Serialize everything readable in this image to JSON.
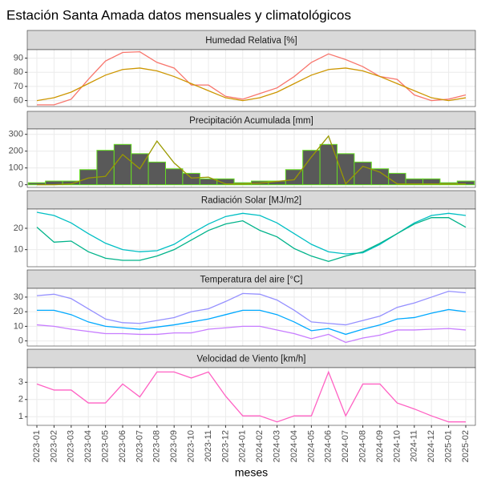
{
  "title": "Estación Santa Amada datos mensuales y climatológicos",
  "chart_data": [
    {
      "type": "line",
      "title": "Humedad Relativa [%]",
      "ylim": [
        55.8,
        96
      ],
      "yticks": [
        60,
        70,
        80,
        90
      ],
      "series": [
        {
          "color": "#F8766D",
          "values": [
            57,
            57,
            61,
            75,
            88,
            94,
            94.5,
            87,
            83,
            71,
            71,
            63,
            61,
            65,
            69,
            77,
            87,
            93,
            89,
            84,
            77,
            75,
            64,
            60,
            61,
            64
          ]
        },
        {
          "color": "#CD9600",
          "values": [
            60,
            62,
            66,
            72,
            78,
            82,
            83,
            81,
            77,
            72,
            67,
            62,
            60,
            62,
            66,
            72,
            78,
            82,
            83,
            81,
            77,
            72,
            67,
            62,
            60,
            62
          ]
        }
      ]
    },
    {
      "type": "bar",
      "title": "Precipitación Acumulada [mm]",
      "ylim": [
        -16,
        332
      ],
      "yticks": [
        0,
        100,
        200,
        300
      ],
      "series": [
        {
          "type": "bar",
          "color": "#595959",
          "edgecolor": "#66DD22",
          "values": [
            12,
            22,
            22,
            90,
            205,
            240,
            185,
            135,
            95,
            68,
            35,
            35,
            12,
            22,
            22,
            90,
            205,
            240,
            185,
            135,
            95,
            68,
            35,
            35,
            12,
            22
          ]
        },
        {
          "type": "line",
          "color": "#9A9A00",
          "values": [
            0,
            0,
            5,
            40,
            50,
            180,
            95,
            260,
            130,
            40,
            45,
            5,
            5,
            10,
            20,
            30,
            165,
            290,
            5,
            110,
            75,
            5,
            5,
            5,
            5,
            5
          ]
        }
      ]
    },
    {
      "type": "line",
      "title": "Radiación Solar [MJ/m2]",
      "ylim": [
        2,
        29
      ],
      "yticks": [
        10,
        20
      ],
      "series": [
        {
          "color": "#00BFC4",
          "values": [
            27.5,
            26,
            22.5,
            17.5,
            13,
            10,
            9,
            9.5,
            12.5,
            17.5,
            22,
            25.5,
            27,
            26,
            22.5,
            17.5,
            12.5,
            9,
            8,
            8.5,
            12.5,
            17.5,
            22.5,
            26,
            27,
            26
          ]
        },
        {
          "color": "#00B38A",
          "values": [
            20.5,
            13.5,
            14,
            9,
            6,
            5,
            5,
            7,
            10,
            14.5,
            19,
            22,
            23.5,
            19,
            16,
            10.5,
            7,
            4.5,
            7,
            9,
            13,
            17.5,
            22,
            25,
            25,
            20.5
          ]
        }
      ]
    },
    {
      "type": "line",
      "title": "Temperatura del aire [°C]",
      "ylim": [
        -3.5,
        36
      ],
      "yticks": [
        0,
        10,
        20,
        30
      ],
      "series": [
        {
          "color": "#9590FF",
          "values": [
            31,
            32,
            29,
            22,
            15,
            12.5,
            12,
            14,
            16,
            20,
            22,
            27,
            32.5,
            32,
            28,
            21,
            13,
            12,
            11,
            14,
            17,
            23,
            26,
            30,
            34,
            33
          ]
        },
        {
          "color": "#00A9FF",
          "values": [
            21,
            21,
            18,
            13,
            10,
            9,
            8,
            9.5,
            11,
            13,
            15,
            18,
            21,
            21,
            18,
            13,
            7,
            8.5,
            4.5,
            8,
            11,
            15,
            16,
            19,
            21.5,
            20
          ]
        },
        {
          "color": "#C77CFF",
          "values": [
            11,
            10,
            8,
            6.5,
            5,
            5,
            4.5,
            4.5,
            5.5,
            5.5,
            8,
            9,
            10,
            10,
            7.5,
            5,
            1.5,
            4.5,
            -1,
            2,
            4,
            7.5,
            7.5,
            8,
            8.5,
            7.5
          ]
        }
      ]
    },
    {
      "type": "line",
      "title": "Velocidad de Viento [km/h]",
      "ylim": [
        0.5,
        3.85
      ],
      "yticks": [
        1,
        2,
        3
      ],
      "xlabel": "meses",
      "categories": [
        "2023-01",
        "2023-02",
        "2023-03",
        "2023-04",
        "2023-05",
        "2023-06",
        "2023-07",
        "2023-08",
        "2023-09",
        "2023-10",
        "2023-11",
        "2023-12",
        "2024-01",
        "2024-02",
        "2024-03",
        "2024-04",
        "2024-05",
        "2024-06",
        "2024-07",
        "2024-08",
        "2024-09",
        "2024-10",
        "2024-11",
        "2024-12",
        "2025-01",
        "2025-02"
      ],
      "series": [
        {
          "color": "#FF61C3",
          "values": [
            2.9,
            2.55,
            2.55,
            1.8,
            1.8,
            2.9,
            2.15,
            3.6,
            3.6,
            3.25,
            3.6,
            2.2,
            1.05,
            1.05,
            0.7,
            1.05,
            1.05,
            3.6,
            1.05,
            2.9,
            2.9,
            1.8,
            1.45,
            1.05,
            0.7,
            0.7
          ]
        }
      ]
    }
  ]
}
